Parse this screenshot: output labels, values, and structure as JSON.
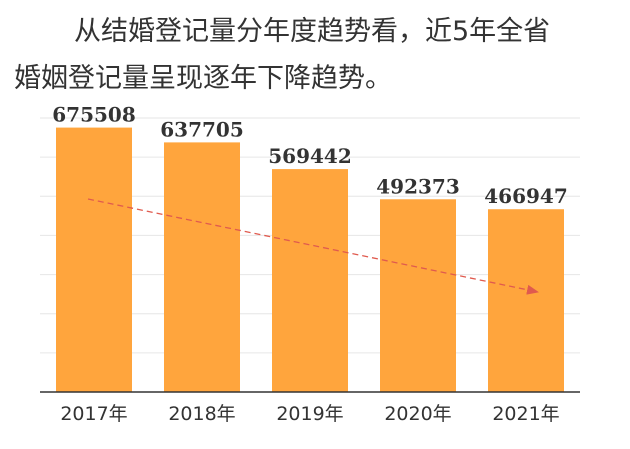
{
  "caption": {
    "line1": "从结婚登记量分年度趋势看，近5年全省",
    "line2": "婚姻登记量呈现逐年下降趋势。"
  },
  "chart_data": {
    "type": "bar",
    "title": "",
    "xlabel": "",
    "ylabel": "",
    "categories": [
      "2017年",
      "2018年",
      "2019年",
      "2020年",
      "2021年"
    ],
    "values": [
      675508,
      637705,
      569442,
      492373,
      466947
    ],
    "data_labels": [
      "675508",
      "637705",
      "569442",
      "492373",
      "466947"
    ],
    "ylim": [
      0,
      700000
    ],
    "grid": true,
    "legend": "none",
    "trend_arrow": true,
    "colors": {
      "bar": "#FFA53D",
      "grid": "#E6E6E6",
      "axis": "#333333",
      "trend": "#E05A4E"
    }
  }
}
